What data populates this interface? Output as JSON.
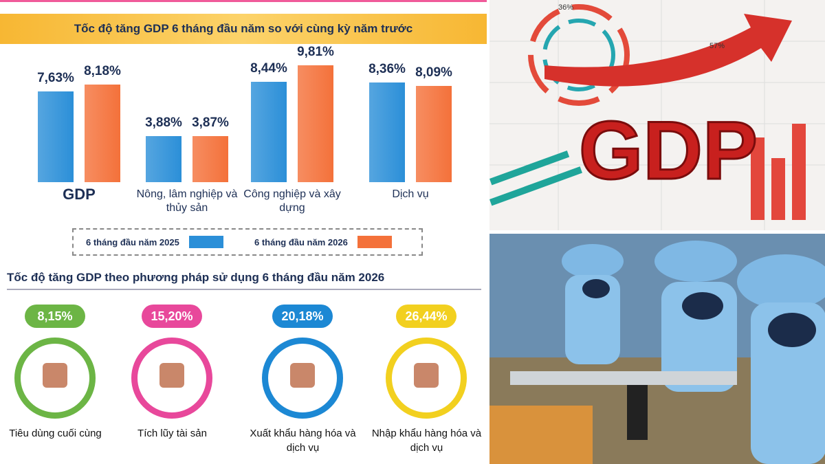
{
  "chart_data": {
    "type": "bar",
    "title": "Tốc độ tăng GDP 6 tháng đầu năm so với cùng kỳ năm trước",
    "categories": [
      "GDP",
      "Nông, lâm nghiệp và thủy sản",
      "Công nghiệp và xây dựng",
      "Dịch vụ"
    ],
    "series": [
      {
        "name": "6 tháng đầu năm 2025",
        "color": "#2b8fd8",
        "values": [
          7.63,
          3.88,
          8.44,
          8.36
        ],
        "value_labels": [
          "7,63%",
          "3,88%",
          "8,44%",
          "8,36%"
        ]
      },
      {
        "name": "6 tháng đầu năm 2026",
        "color": "#f4713a",
        "values": [
          8.18,
          3.87,
          9.81,
          8.09
        ],
        "value_labels": [
          "8,18%",
          "3,87%",
          "9,81%",
          "8,09%"
        ]
      }
    ],
    "legend": "bottom"
  },
  "usage": {
    "title": "Tốc độ tăng GDP theo phương pháp sử dụng 6 tháng đầu năm 2026",
    "items": [
      {
        "value": 8.15,
        "value_label": "8,15%",
        "name": "Tiêu dùng cuối cùng",
        "color": "#6cb545"
      },
      {
        "value": 15.2,
        "value_label": "15,20%",
        "name": "Tích lũy tài sản",
        "color": "#e8489b"
      },
      {
        "value": 20.18,
        "value_label": "20,18%",
        "name": "Xuất khẩu hàng hóa và dịch vụ",
        "color": "#1c88d4"
      },
      {
        "value": 26.44,
        "value_label": "26,44%",
        "name": "Nhập khẩu hàng hóa và dịch vụ",
        "color": "#f2d01f"
      }
    ]
  },
  "illustration": {
    "word": "GDP",
    "labels": [
      "36%",
      "57%"
    ]
  }
}
